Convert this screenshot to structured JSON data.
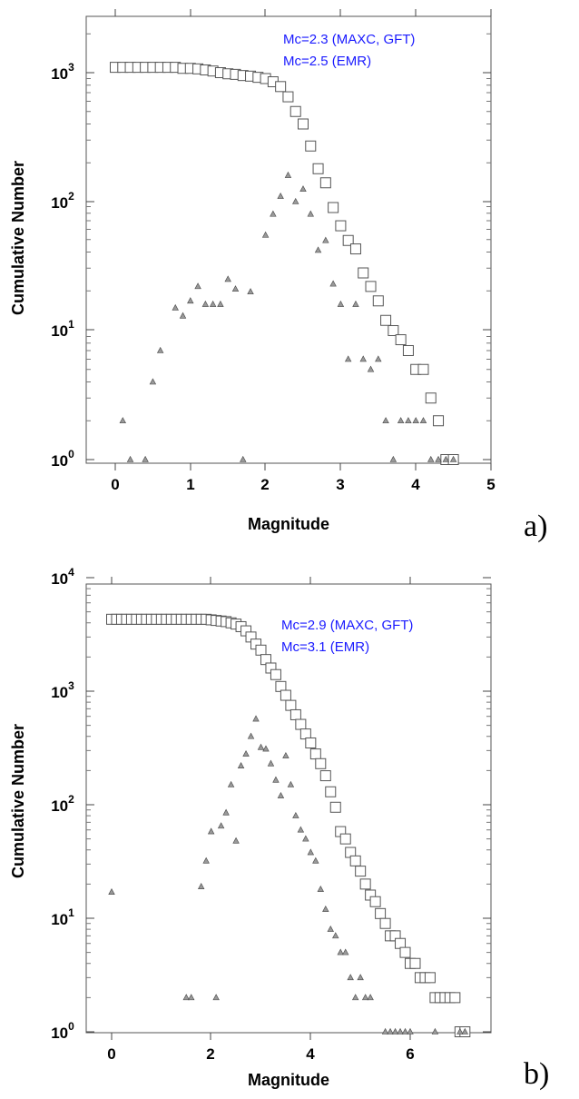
{
  "chart_data": [
    {
      "type": "scatter",
      "panel_label": "a)",
      "xlabel": "Magnitude",
      "ylabel": "Cumulative Number",
      "xlim": [
        -0.5,
        5
      ],
      "ylim": [
        1,
        3000
      ],
      "yscale": "log",
      "xticks": [
        "0",
        "1",
        "2",
        "3",
        "4",
        "5"
      ],
      "yticks": [
        {
          "base": "10",
          "exp": "0"
        },
        {
          "base": "10",
          "exp": "1"
        },
        {
          "base": "10",
          "exp": "2"
        },
        {
          "base": "10",
          "exp": "3"
        }
      ],
      "grid": false,
      "annotations": [
        "Mc=2.3 (MAXC, GFT)",
        "Mc=2.5 (EMR)"
      ],
      "series": [
        {
          "marker": "square",
          "points": [
            [
              0,
              1100
            ],
            [
              0.1,
              1100
            ],
            [
              0.2,
              1100
            ],
            [
              0.3,
              1100
            ],
            [
              0.4,
              1100
            ],
            [
              0.5,
              1100
            ],
            [
              0.6,
              1100
            ],
            [
              0.7,
              1100
            ],
            [
              0.8,
              1100
            ],
            [
              0.9,
              1080
            ],
            [
              1.0,
              1080
            ],
            [
              1.1,
              1070
            ],
            [
              1.2,
              1050
            ],
            [
              1.3,
              1030
            ],
            [
              1.4,
              1000
            ],
            [
              1.5,
              980
            ],
            [
              1.6,
              970
            ],
            [
              1.7,
              950
            ],
            [
              1.8,
              940
            ],
            [
              1.9,
              920
            ],
            [
              2.0,
              900
            ],
            [
              2.1,
              850
            ],
            [
              2.2,
              780
            ],
            [
              2.3,
              650
            ],
            [
              2.4,
              500
            ],
            [
              2.5,
              400
            ],
            [
              2.6,
              270
            ],
            [
              2.7,
              180
            ],
            [
              2.8,
              140
            ],
            [
              2.9,
              90
            ],
            [
              3.0,
              65
            ],
            [
              3.1,
              50
            ],
            [
              3.2,
              43
            ],
            [
              3.3,
              28
            ],
            [
              3.4,
              22
            ],
            [
              3.5,
              17
            ],
            [
              3.6,
              12
            ],
            [
              3.7,
              10
            ],
            [
              3.8,
              8.5
            ],
            [
              3.9,
              7
            ],
            [
              4.0,
              5
            ],
            [
              4.1,
              5
            ],
            [
              4.2,
              3
            ],
            [
              4.3,
              2
            ],
            [
              4.4,
              1
            ],
            [
              4.5,
              1
            ]
          ]
        },
        {
          "marker": "triangle",
          "points": [
            [
              0.1,
              2
            ],
            [
              0.2,
              1
            ],
            [
              0.4,
              1
            ],
            [
              0.5,
              4
            ],
            [
              0.6,
              7
            ],
            [
              0.8,
              15
            ],
            [
              0.9,
              13
            ],
            [
              1.0,
              17
            ],
            [
              1.1,
              22
            ],
            [
              1.2,
              16
            ],
            [
              1.3,
              16
            ],
            [
              1.4,
              16
            ],
            [
              1.5,
              25
            ],
            [
              1.6,
              21
            ],
            [
              1.7,
              1
            ],
            [
              1.8,
              20
            ],
            [
              2.0,
              55
            ],
            [
              2.1,
              80
            ],
            [
              2.2,
              110
            ],
            [
              2.3,
              160
            ],
            [
              2.4,
              100
            ],
            [
              2.5,
              125
            ],
            [
              2.6,
              80
            ],
            [
              2.7,
              42
            ],
            [
              2.8,
              50
            ],
            [
              2.9,
              23
            ],
            [
              3.0,
              16
            ],
            [
              3.1,
              6
            ],
            [
              3.2,
              16
            ],
            [
              3.3,
              6
            ],
            [
              3.4,
              5
            ],
            [
              3.5,
              6
            ],
            [
              3.6,
              2
            ],
            [
              3.7,
              1
            ],
            [
              3.8,
              2
            ],
            [
              3.9,
              2
            ],
            [
              4.0,
              2
            ],
            [
              4.1,
              2
            ],
            [
              4.2,
              1
            ],
            [
              4.3,
              1
            ],
            [
              4.4,
              1
            ],
            [
              4.5,
              1
            ]
          ]
        }
      ]
    },
    {
      "type": "scatter",
      "panel_label": "b)",
      "xlabel": "Magnitude",
      "ylabel": "Cumulative Number",
      "xlim": [
        -0.5,
        7.5
      ],
      "ylim": [
        0.9,
        10000
      ],
      "yscale": "log",
      "xticks": [
        "0",
        "2",
        "4",
        "6"
      ],
      "yticks": [
        {
          "base": "10",
          "exp": "0"
        },
        {
          "base": "10",
          "exp": "1"
        },
        {
          "base": "10",
          "exp": "2"
        },
        {
          "base": "10",
          "exp": "3"
        },
        {
          "base": "10",
          "exp": "4"
        }
      ],
      "grid": false,
      "annotations": [
        "Mc=2.9 (MAXC, GFT)",
        "Mc=3.1 (EMR)"
      ],
      "series": [
        {
          "marker": "square",
          "points": [
            [
              0,
              4300
            ],
            [
              0.1,
              4300
            ],
            [
              0.2,
              4300
            ],
            [
              0.3,
              4300
            ],
            [
              0.4,
              4300
            ],
            [
              0.5,
              4300
            ],
            [
              0.6,
              4300
            ],
            [
              0.7,
              4300
            ],
            [
              0.8,
              4300
            ],
            [
              0.9,
              4300
            ],
            [
              1.0,
              4300
            ],
            [
              1.1,
              4300
            ],
            [
              1.2,
              4300
            ],
            [
              1.3,
              4300
            ],
            [
              1.4,
              4300
            ],
            [
              1.5,
              4300
            ],
            [
              1.6,
              4300
            ],
            [
              1.7,
              4300
            ],
            [
              1.8,
              4300
            ],
            [
              1.9,
              4300
            ],
            [
              2.0,
              4250
            ],
            [
              2.1,
              4200
            ],
            [
              2.2,
              4150
            ],
            [
              2.3,
              4100
            ],
            [
              2.4,
              4000
            ],
            [
              2.5,
              3900
            ],
            [
              2.6,
              3700
            ],
            [
              2.7,
              3400
            ],
            [
              2.8,
              3000
            ],
            [
              2.9,
              2600
            ],
            [
              3.0,
              2300
            ],
            [
              3.1,
              1900
            ],
            [
              3.2,
              1600
            ],
            [
              3.3,
              1400
            ],
            [
              3.4,
              1100
            ],
            [
              3.5,
              920
            ],
            [
              3.6,
              750
            ],
            [
              3.7,
              620
            ],
            [
              3.8,
              510
            ],
            [
              3.9,
              420
            ],
            [
              4.0,
              350
            ],
            [
              4.1,
              280
            ],
            [
              4.2,
              230
            ],
            [
              4.3,
              180
            ],
            [
              4.4,
              130
            ],
            [
              4.5,
              95
            ],
            [
              4.6,
              58
            ],
            [
              4.7,
              50
            ],
            [
              4.8,
              38
            ],
            [
              4.9,
              32
            ],
            [
              5.0,
              26
            ],
            [
              5.1,
              20
            ],
            [
              5.2,
              16
            ],
            [
              5.3,
              14
            ],
            [
              5.4,
              11
            ],
            [
              5.5,
              9
            ],
            [
              5.6,
              7
            ],
            [
              5.7,
              7
            ],
            [
              5.8,
              6
            ],
            [
              5.9,
              5
            ],
            [
              6.0,
              4
            ],
            [
              6.1,
              4
            ],
            [
              6.2,
              3
            ],
            [
              6.3,
              3
            ],
            [
              6.4,
              3
            ],
            [
              6.5,
              2
            ],
            [
              6.6,
              2
            ],
            [
              6.7,
              2
            ],
            [
              6.8,
              2
            ],
            [
              6.9,
              2
            ],
            [
              7.0,
              1
            ],
            [
              7.1,
              1
            ]
          ]
        },
        {
          "marker": "triangle",
          "points": [
            [
              0,
              17
            ],
            [
              1.5,
              2
            ],
            [
              1.6,
              2
            ],
            [
              1.8,
              19
            ],
            [
              1.9,
              32
            ],
            [
              2.0,
              58
            ],
            [
              2.1,
              2
            ],
            [
              2.2,
              65
            ],
            [
              2.3,
              85
            ],
            [
              2.4,
              150
            ],
            [
              2.5,
              48
            ],
            [
              2.6,
              220
            ],
            [
              2.7,
              280
            ],
            [
              2.8,
              400
            ],
            [
              2.9,
              570
            ],
            [
              3.0,
              320
            ],
            [
              3.1,
              310
            ],
            [
              3.2,
              230
            ],
            [
              3.3,
              165
            ],
            [
              3.4,
              120
            ],
            [
              3.5,
              270
            ],
            [
              3.6,
              150
            ],
            [
              3.7,
              80
            ],
            [
              3.8,
              60
            ],
            [
              3.9,
              50
            ],
            [
              4.0,
              38
            ],
            [
              4.1,
              32
            ],
            [
              4.2,
              18
            ],
            [
              4.3,
              12
            ],
            [
              4.4,
              8
            ],
            [
              4.5,
              7
            ],
            [
              4.6,
              5
            ],
            [
              4.7,
              5
            ],
            [
              4.8,
              3
            ],
            [
              4.9,
              2
            ],
            [
              5.0,
              3
            ],
            [
              5.1,
              2
            ],
            [
              5.2,
              2
            ],
            [
              5.5,
              1
            ],
            [
              5.6,
              1
            ],
            [
              5.7,
              1
            ],
            [
              5.8,
              1
            ],
            [
              5.9,
              1
            ],
            [
              6.0,
              1
            ],
            [
              6.5,
              1
            ],
            [
              7.0,
              1
            ],
            [
              7.1,
              1
            ]
          ]
        }
      ]
    }
  ]
}
